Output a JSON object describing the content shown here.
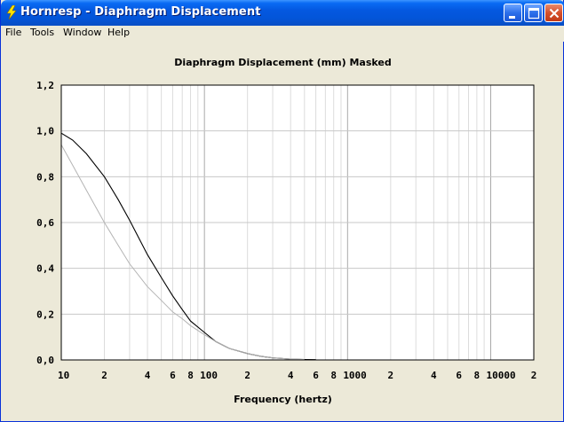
{
  "window": {
    "title": "Hornresp - Diaphragm Displacement"
  },
  "menu": {
    "items": [
      "File",
      "Tools",
      "Window",
      "Help"
    ]
  },
  "colors": {
    "titlebar": "#0458E0",
    "plot_bg": "#FFFFFF",
    "grid": "#C8C8C8",
    "series_main": "#000000",
    "series_masked": "#B4B4B4"
  },
  "icons": [
    "app-lightning-icon",
    "minimize-icon",
    "maximize-icon",
    "close-icon"
  ],
  "chart_data": {
    "type": "line",
    "title": "Diaphragm Displacement (mm)   Masked",
    "xlabel": "Frequency (hertz)",
    "ylabel": "",
    "x_scale": "log",
    "xlim": [
      10,
      20000
    ],
    "ylim": [
      0,
      1.2
    ],
    "grid": true,
    "y_ticks": [
      "1,2",
      "1,0",
      "0,8",
      "0,6",
      "0,4",
      "0,2",
      "0,0"
    ],
    "x_ticks": [
      "10",
      "2",
      "4",
      "6",
      "8",
      "100",
      "2",
      "4",
      "6",
      "8",
      "1000",
      "2",
      "4",
      "6",
      "8",
      "10000",
      "2"
    ],
    "series": [
      {
        "x": [
          10,
          12,
          15,
          20,
          25,
          30,
          40,
          50,
          60,
          70,
          80,
          100,
          120,
          150,
          200,
          250,
          300,
          400,
          500,
          600
        ],
        "y": [
          0.99,
          0.96,
          0.9,
          0.8,
          0.7,
          0.61,
          0.46,
          0.36,
          0.28,
          0.22,
          0.17,
          0.12,
          0.08,
          0.05,
          0.028,
          0.015,
          0.009,
          0.004,
          0.002,
          0.001
        ]
      },
      {
        "x": [
          10,
          12,
          15,
          20,
          25,
          30,
          40,
          50,
          60,
          70,
          80,
          100,
          120,
          150,
          200,
          250,
          300,
          400,
          500
        ],
        "y": [
          0.94,
          0.85,
          0.74,
          0.6,
          0.5,
          0.42,
          0.32,
          0.26,
          0.21,
          0.18,
          0.15,
          0.11,
          0.08,
          0.05,
          0.028,
          0.015,
          0.009,
          0.004,
          0.002
        ]
      }
    ]
  }
}
